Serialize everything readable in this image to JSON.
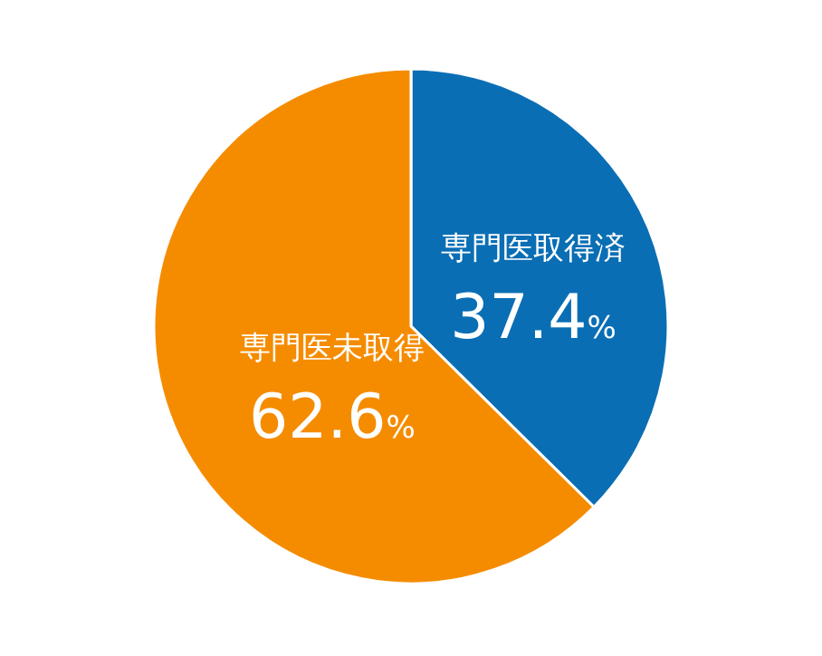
{
  "chart_data": {
    "type": "pie",
    "categories": [
      "専門医取得済",
      "専門医未取得"
    ],
    "values": [
      37.4,
      62.6
    ],
    "colors": [
      "#0a6eb4",
      "#f58c00"
    ],
    "value_labels": [
      "37.4%",
      "62.6%"
    ]
  }
}
